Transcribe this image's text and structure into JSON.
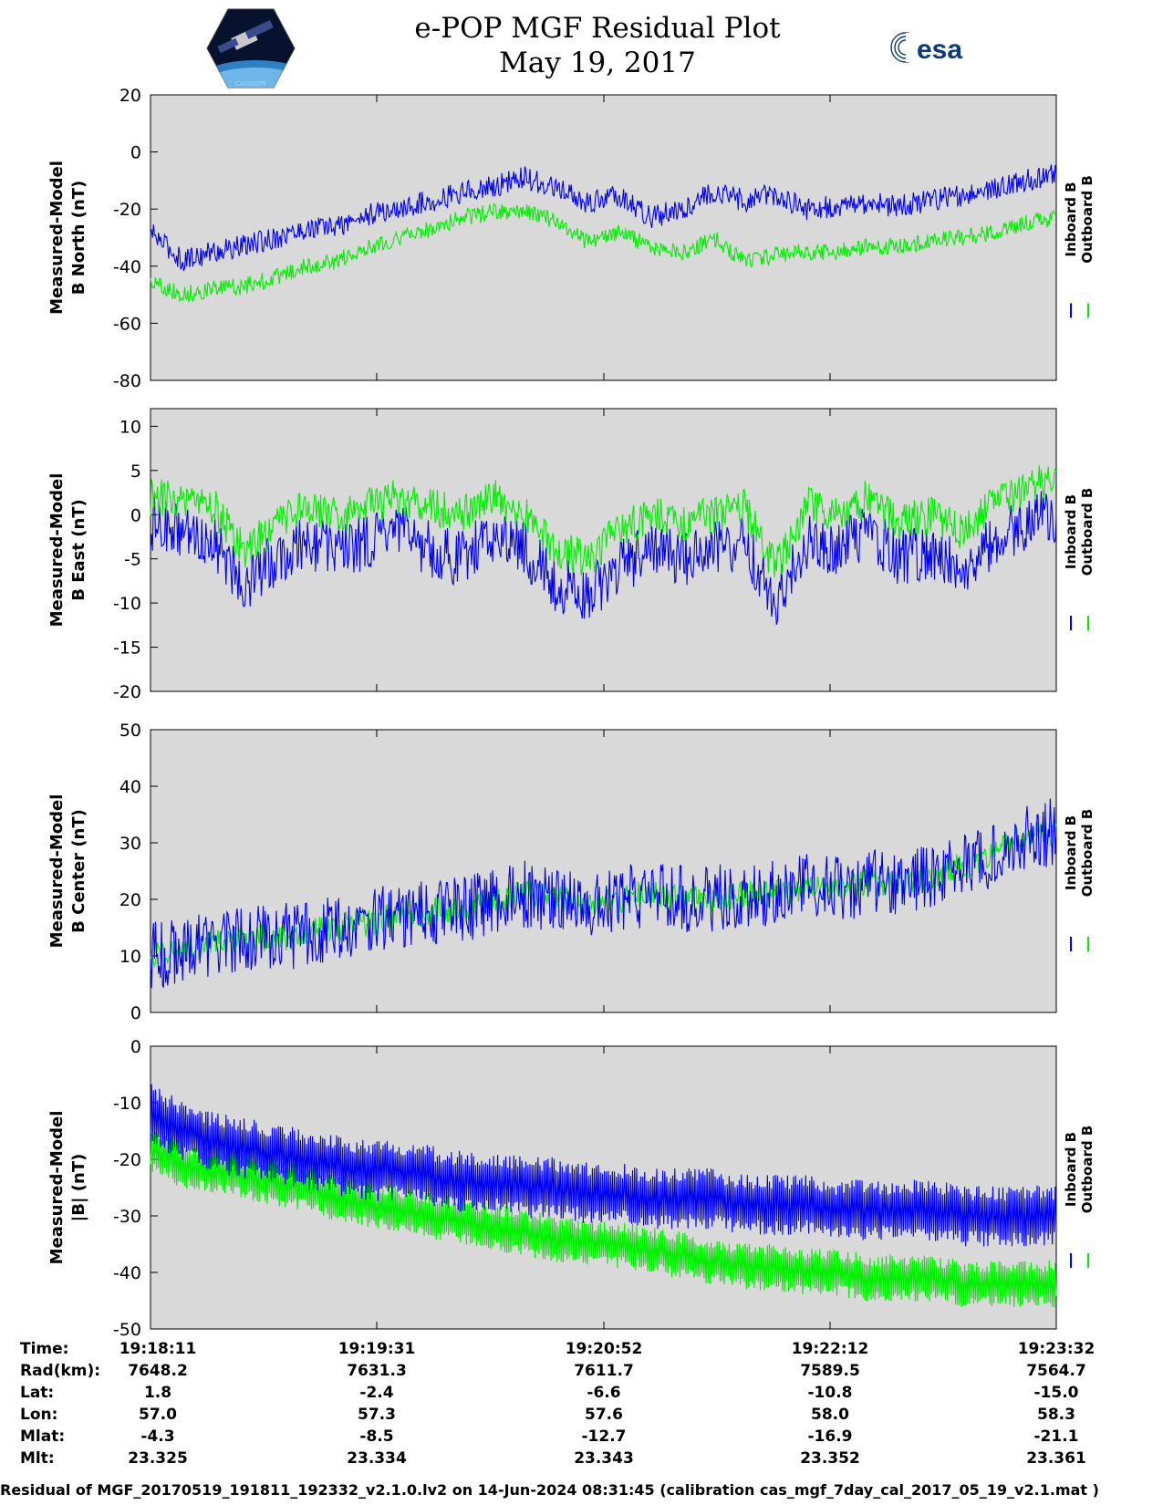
{
  "header": {
    "title_line1": "e-POP MGF Residual Plot",
    "title_line2": "May 19, 2017",
    "logo_left_text": "CASSIOPE",
    "logo_right_text": "esa"
  },
  "chart_data": [
    {
      "type": "line",
      "ylabel_line1": "Measured-Model",
      "ylabel_line2": "B North (nT)",
      "ylim": [
        -80,
        20
      ],
      "yticks": [
        20,
        0,
        -20,
        -40,
        -60,
        -80
      ],
      "series": [
        {
          "name": "Inboard B",
          "color": "#0000ee",
          "values": [
            -28,
            -38,
            -35,
            -33,
            -30,
            -27,
            -26,
            -22,
            -20,
            -17,
            -14,
            -12,
            -9,
            -13,
            -18,
            -15,
            -23,
            -20,
            -14,
            -17,
            -15,
            -20,
            -19,
            -18,
            -19,
            -17,
            -15,
            -13,
            -10,
            -8
          ]
        },
        {
          "name": "Outboard B",
          "color": "#00ee00",
          "values": [
            -45,
            -50,
            -48,
            -47,
            -44,
            -40,
            -38,
            -33,
            -30,
            -27,
            -23,
            -21,
            -21,
            -24,
            -32,
            -28,
            -33,
            -36,
            -30,
            -38,
            -36,
            -35,
            -35,
            -33,
            -33,
            -31,
            -30,
            -28,
            -25,
            -23
          ]
        }
      ]
    },
    {
      "type": "line",
      "ylabel_line1": "Measured-Model",
      "ylabel_line2": "B East (nT)",
      "ylim": [
        -20,
        12
      ],
      "yticks": [
        10,
        5,
        0,
        -5,
        -10,
        -15,
        -20
      ],
      "series": [
        {
          "name": "Inboard B",
          "color": "#0000ee",
          "values": [
            -1,
            -2,
            -3,
            -8,
            -5,
            -3,
            -4,
            -3,
            -2,
            -4,
            -5,
            -2,
            -4,
            -8,
            -9,
            -6,
            -4,
            -5,
            -4,
            -3,
            -10,
            -3,
            -4,
            -2,
            -5,
            -4,
            -6,
            -3,
            -1,
            0
          ]
        },
        {
          "name": "Outboard B",
          "color": "#00ee00",
          "values": [
            2,
            2,
            1,
            -4,
            -1,
            1,
            0,
            1,
            2,
            1,
            0,
            2,
            0,
            -4,
            -5,
            -2,
            0,
            -1,
            0,
            1,
            -6,
            1,
            0,
            2,
            -1,
            0,
            -2,
            1,
            3,
            4
          ]
        }
      ]
    },
    {
      "type": "line",
      "ylabel_line1": "Measured-Model",
      "ylabel_line2": "B Center (nT)",
      "ylim": [
        0,
        50
      ],
      "yticks": [
        50,
        40,
        30,
        20,
        10,
        0
      ],
      "series": [
        {
          "name": "Inboard B",
          "color": "#0000ee",
          "values": [
            10,
            11,
            12,
            13,
            13,
            14,
            15,
            16,
            17,
            18,
            18,
            20,
            21,
            20,
            19,
            20,
            21,
            20,
            20,
            21,
            21,
            22,
            22,
            23,
            23,
            24,
            26,
            28,
            31,
            32
          ]
        },
        {
          "name": "Outboard B",
          "color": "#00ee00",
          "values": [
            10,
            11,
            12,
            13,
            13,
            14,
            15,
            16,
            17,
            18,
            18,
            20,
            21,
            20,
            19,
            20,
            21,
            20,
            20,
            21,
            21,
            22,
            22,
            23,
            23,
            24,
            26,
            28,
            31,
            32
          ]
        }
      ]
    },
    {
      "type": "line",
      "ylabel_line1": "Measured-Model",
      "ylabel_line2": "|B| (nT)",
      "ylim": [
        -50,
        0
      ],
      "yticks": [
        0,
        -10,
        -20,
        -30,
        -40,
        -50
      ],
      "series": [
        {
          "name": "Inboard B",
          "color": "#0000ee",
          "values": [
            -12,
            -15,
            -17,
            -18,
            -19,
            -20,
            -21,
            -22,
            -22,
            -23,
            -24,
            -24,
            -25,
            -25,
            -26,
            -26,
            -27,
            -27,
            -27,
            -28,
            -28,
            -28,
            -29,
            -29,
            -29,
            -29,
            -30,
            -30,
            -30,
            -30
          ]
        },
        {
          "name": "Outboard B",
          "color": "#00ee00",
          "values": [
            -18,
            -21,
            -22,
            -23,
            -24,
            -25,
            -27,
            -28,
            -29,
            -30,
            -31,
            -32,
            -33,
            -34,
            -35,
            -35,
            -36,
            -37,
            -38,
            -39,
            -39,
            -40,
            -40,
            -41,
            -41,
            -41,
            -42,
            -42,
            -42,
            -42
          ]
        }
      ]
    }
  ],
  "legend": {
    "inboard": "Inboard B",
    "outboard": "Outboard B"
  },
  "info_table": {
    "labels": [
      "Time:",
      "Rad(km):",
      "Lat:",
      "Lon:",
      "Mlat:",
      "Mlt:"
    ],
    "columns": [
      [
        "19:18:11",
        "7648.2",
        "1.8",
        "57.0",
        "-4.3",
        "23.325"
      ],
      [
        "19:19:31",
        "7631.3",
        "-2.4",
        "57.3",
        "-8.5",
        "23.334"
      ],
      [
        "19:20:52",
        "7611.7",
        "-6.6",
        "57.6",
        "-12.7",
        "23.343"
      ],
      [
        "19:22:12",
        "7589.5",
        "-10.8",
        "58.0",
        "-16.9",
        "23.352"
      ],
      [
        "19:23:32",
        "7564.7",
        "-15.0",
        "58.3",
        "-21.1",
        "23.361"
      ]
    ]
  },
  "footer": "Residual of MGF_20170519_191811_192332_v2.1.0.lv2 on 14-Jun-2024 08:31:45 (calibration cas_mgf_7day_cal_2017_05_19_v2.1.mat )"
}
